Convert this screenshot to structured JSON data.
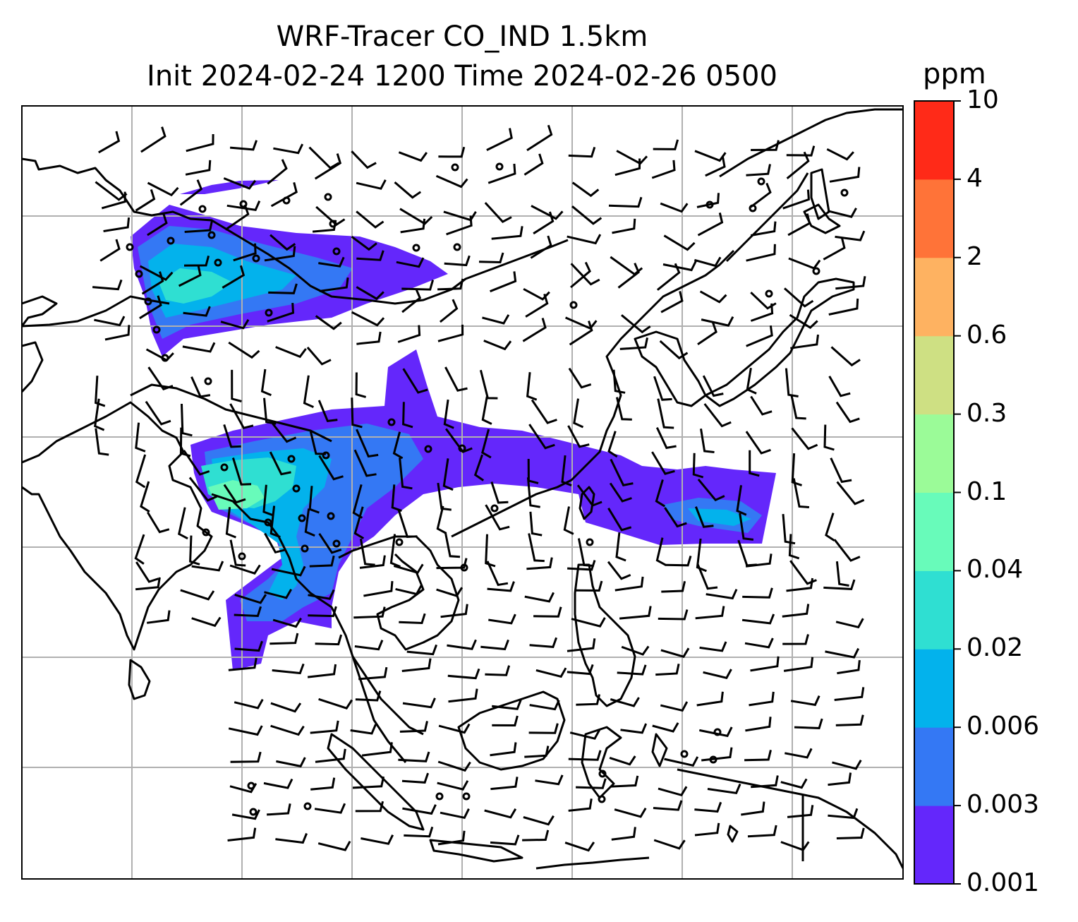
{
  "title": {
    "line1": "WRF-Tracer CO_IND 1.5km",
    "line2": "Init 2024-02-24 1200 Time 2024-02-26 0500"
  },
  "colorbar": {
    "unit": "ppm",
    "levels": [
      "0.001",
      "0.003",
      "0.006",
      "0.02",
      "0.04",
      "0.1",
      "0.3",
      "0.6",
      "2",
      "4",
      "10"
    ],
    "colors": [
      "#6427fb",
      "#3478f4",
      "#03b2ec",
      "#2fdfd2",
      "#68fbba",
      "#9bfb98",
      "#cee083",
      "#feb261",
      "#ff7338",
      "#ff2a18"
    ]
  },
  "map": {
    "background": "#ffffff",
    "coastline_color": "#000000",
    "gridline_color": "#b0b0b0",
    "barb_color": "#000000"
  }
}
